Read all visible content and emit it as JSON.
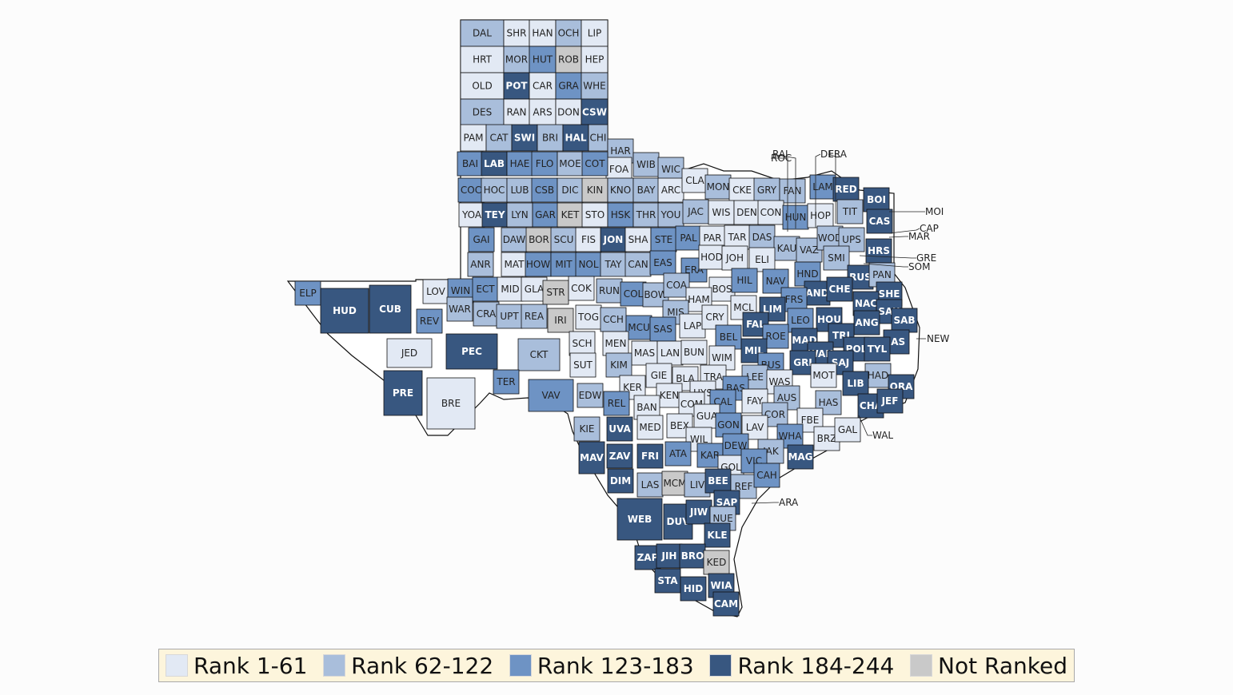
{
  "colors": {
    "rank1": "#e2e9f4",
    "rank2": "#a9bedb",
    "rank3": "#6e93c4",
    "rank4": "#385780",
    "unranked": "#c9c9c9"
  },
  "legend": {
    "items": [
      {
        "label": "Rank 1-61",
        "cls": "rank1"
      },
      {
        "label": "Rank 62-122",
        "cls": "rank2"
      },
      {
        "label": "Rank 123-183",
        "cls": "rank3"
      },
      {
        "label": "Rank 184-244",
        "cls": "rank4"
      },
      {
        "label": "Not Ranked",
        "cls": "unranked"
      }
    ]
  },
  "panhandle_grid": {
    "rows": [
      [
        "DAL",
        "SHR",
        "HAN",
        "OCH",
        "LIP"
      ],
      [
        "HRT",
        "MOR",
        "HUT",
        "ROB",
        "HEP"
      ],
      [
        "OLD",
        "POT",
        "CAR",
        "GRA",
        "WHE"
      ],
      [
        "DES",
        "RAN",
        "ARS",
        "DON",
        "CSW"
      ],
      [
        "PAM",
        "CAT",
        "SWI",
        "BRI",
        "HAL",
        "CHI"
      ]
    ],
    "ranks": [
      [
        2,
        1,
        1,
        2,
        1
      ],
      [
        1,
        2,
        3,
        "u",
        1
      ],
      [
        1,
        4,
        1,
        3,
        2
      ],
      [
        2,
        1,
        1,
        1,
        4
      ],
      [
        1,
        2,
        4,
        2,
        4,
        2
      ]
    ]
  },
  "counties": [
    {
      "c": "HAR",
      "r": 2
    },
    {
      "c": "FOA",
      "r": 1
    },
    {
      "c": "WIB",
      "r": 2
    },
    {
      "c": "WIC",
      "r": 2
    },
    {
      "c": "BAI",
      "r": 3
    },
    {
      "c": "LAB",
      "r": 4
    },
    {
      "c": "HAE",
      "r": 3
    },
    {
      "c": "FLO",
      "r": 3
    },
    {
      "c": "MOE",
      "r": 2
    },
    {
      "c": "COT",
      "r": 3
    },
    {
      "c": "COC",
      "r": 3
    },
    {
      "c": "HOC",
      "r": 2
    },
    {
      "c": "LUB",
      "r": 2
    },
    {
      "c": "CSB",
      "r": 3
    },
    {
      "c": "DIC",
      "r": 2
    },
    {
      "c": "KIN",
      "r": "u"
    },
    {
      "c": "KNO",
      "r": 2
    },
    {
      "c": "BAY",
      "r": 2
    },
    {
      "c": "ARC",
      "r": 1
    },
    {
      "c": "YOA",
      "r": 1
    },
    {
      "c": "TEY",
      "r": 4
    },
    {
      "c": "LYN",
      "r": 2
    },
    {
      "c": "GAR",
      "r": 3
    },
    {
      "c": "KET",
      "r": "u"
    },
    {
      "c": "STO",
      "r": 1
    },
    {
      "c": "HSK",
      "r": 3
    },
    {
      "c": "THR",
      "r": 2
    },
    {
      "c": "YOU",
      "r": 2
    },
    {
      "c": "GAI",
      "r": 3
    },
    {
      "c": "DAW",
      "r": 2
    },
    {
      "c": "BOR",
      "r": "u"
    },
    {
      "c": "SCU",
      "r": 2
    },
    {
      "c": "FIS",
      "r": 1
    },
    {
      "c": "JON",
      "r": 4
    },
    {
      "c": "SHA",
      "r": 1
    },
    {
      "c": "STE",
      "r": 3
    },
    {
      "c": "PAL",
      "r": 3
    },
    {
      "c": "ANR",
      "r": 2
    },
    {
      "c": "MAT",
      "r": 1
    },
    {
      "c": "HOW",
      "r": 3
    },
    {
      "c": "MIT",
      "r": 3
    },
    {
      "c": "NOL",
      "r": 3
    },
    {
      "c": "TAY",
      "r": 2
    },
    {
      "c": "CAN",
      "r": 2
    },
    {
      "c": "EAS",
      "r": 3
    },
    {
      "c": "ERA",
      "r": 3
    },
    {
      "c": "CLA",
      "r": 1
    },
    {
      "c": "MON",
      "r": 2
    },
    {
      "c": "CKE",
      "r": 1
    },
    {
      "c": "GRY",
      "r": 2
    },
    {
      "c": "FAN",
      "r": 2
    },
    {
      "c": "LAM",
      "r": 3
    },
    {
      "c": "RED",
      "r": 4
    },
    {
      "c": "BOI",
      "r": 4
    },
    {
      "c": "JAC",
      "r": 2
    },
    {
      "c": "WIS",
      "r": 1
    },
    {
      "c": "DEN",
      "r": 1
    },
    {
      "c": "CON",
      "r": 1
    },
    {
      "c": "HUN",
      "r": 3
    },
    {
      "c": "HOP",
      "r": 1
    },
    {
      "c": "TIT",
      "r": 2
    },
    {
      "c": "CAS",
      "r": 4
    },
    {
      "c": "PAR",
      "r": 1
    },
    {
      "c": "TAR",
      "r": 1
    },
    {
      "c": "DAS",
      "r": 2
    },
    {
      "c": "KAU",
      "r": 2
    },
    {
      "c": "VAZ",
      "r": 2
    },
    {
      "c": "WOD",
      "r": 2
    },
    {
      "c": "UPS",
      "r": 2
    },
    {
      "c": "HRS",
      "r": 4
    },
    {
      "c": "HOD",
      "r": 1
    },
    {
      "c": "JOH",
      "r": 1
    },
    {
      "c": "ELI",
      "r": 1
    },
    {
      "c": "SMI",
      "r": 2
    },
    {
      "c": "HND",
      "r": 3
    },
    {
      "c": "RUS",
      "r": 4
    },
    {
      "c": "PAN",
      "r": 2
    },
    {
      "c": "ELP",
      "r": 3
    },
    {
      "c": "HUD",
      "r": 4
    },
    {
      "c": "CUB",
      "r": 4
    },
    {
      "c": "LOV",
      "r": 1
    },
    {
      "c": "WIN",
      "r": 3
    },
    {
      "c": "ECT",
      "r": 3
    },
    {
      "c": "MID",
      "r": 1
    },
    {
      "c": "GLA",
      "r": 1
    },
    {
      "c": "STR",
      "r": "u"
    },
    {
      "c": "COK",
      "r": 1
    },
    {
      "c": "RUN",
      "r": 2
    },
    {
      "c": "WAR",
      "r": 2
    },
    {
      "c": "CRA",
      "r": 2
    },
    {
      "c": "UPT",
      "r": 2
    },
    {
      "c": "REA",
      "r": 2
    },
    {
      "c": "IRI",
      "r": "u"
    },
    {
      "c": "TOG",
      "r": 1
    },
    {
      "c": "REV",
      "r": 3
    },
    {
      "c": "COL",
      "r": 3
    },
    {
      "c": "BOW",
      "r": 2
    },
    {
      "c": "COA",
      "r": 2
    },
    {
      "c": "BOS",
      "r": 1
    },
    {
      "c": "HIL",
      "r": 3
    },
    {
      "c": "NAV",
      "r": 3
    },
    {
      "c": "AND",
      "r": 4
    },
    {
      "c": "CHE",
      "r": 4
    },
    {
      "c": "SHE",
      "r": 4
    },
    {
      "c": "HAM",
      "r": 1
    },
    {
      "c": "MCL",
      "r": 1
    },
    {
      "c": "FRS",
      "r": 3
    },
    {
      "c": "NAC",
      "r": 4
    },
    {
      "c": "SAU",
      "r": 4
    },
    {
      "c": "MIS",
      "r": 2
    },
    {
      "c": "LIM",
      "r": 4
    },
    {
      "c": "CCH",
      "r": 2
    },
    {
      "c": "LAP",
      "r": 1
    },
    {
      "c": "CRY",
      "r": 1
    },
    {
      "c": "FAL",
      "r": 4
    },
    {
      "c": "LEO",
      "r": 3
    },
    {
      "c": "HOU",
      "r": 4
    },
    {
      "c": "ANG",
      "r": 4
    },
    {
      "c": "SAB",
      "r": 4
    },
    {
      "c": "MCU",
      "r": 3
    },
    {
      "c": "SAS",
      "r": 3
    },
    {
      "c": "JED",
      "r": 1
    },
    {
      "c": "PEC",
      "r": 4
    },
    {
      "c": "CKT",
      "r": 2
    },
    {
      "c": "SCH",
      "r": 1
    },
    {
      "c": "MEN",
      "r": 1
    },
    {
      "c": "BEL",
      "r": 3
    },
    {
      "c": "ROE",
      "r": 3
    },
    {
      "c": "TRI",
      "r": 4
    },
    {
      "c": "JAS",
      "r": 4
    },
    {
      "c": "MAS",
      "r": 1
    },
    {
      "c": "LAN",
      "r": 1
    },
    {
      "c": "BUN",
      "r": 1
    },
    {
      "c": "WIM",
      "r": 1
    },
    {
      "c": "MIL",
      "r": 4
    },
    {
      "c": "MAD",
      "r": 4
    },
    {
      "c": "WAK",
      "r": 4
    },
    {
      "c": "POL",
      "r": 4
    },
    {
      "c": "TYL",
      "r": 4
    },
    {
      "c": "NEW",
      "r": 4
    },
    {
      "c": "SUT",
      "r": 1
    },
    {
      "c": "KIM",
      "r": 2
    },
    {
      "c": "BUS",
      "r": 3
    },
    {
      "c": "GRI",
      "r": 4
    },
    {
      "c": "SAJ",
      "r": 4
    },
    {
      "c": "GIE",
      "r": 1
    },
    {
      "c": "BLA",
      "r": 1
    },
    {
      "c": "TRA",
      "r": 1
    },
    {
      "c": "LEE",
      "r": 2
    },
    {
      "c": "MOT",
      "r": 1
    },
    {
      "c": "HAD",
      "r": 2
    },
    {
      "c": "TER",
      "r": 3
    },
    {
      "c": "VAV",
      "r": 3
    },
    {
      "c": "EDW",
      "r": 2
    },
    {
      "c": "KER",
      "r": 1
    },
    {
      "c": "KEN",
      "r": 1
    },
    {
      "c": "HYS",
      "r": 1
    },
    {
      "c": "BAS",
      "r": 3
    },
    {
      "c": "WAS",
      "r": 1
    },
    {
      "c": "AUS",
      "r": 2
    },
    {
      "c": "LIB",
      "r": 4
    },
    {
      "c": "ORA",
      "r": 4
    },
    {
      "c": "PRE",
      "r": 4
    },
    {
      "c": "BRE",
      "r": 1
    },
    {
      "c": "REL",
      "r": 3
    },
    {
      "c": "BAN",
      "r": 1
    },
    {
      "c": "COM",
      "r": 1
    },
    {
      "c": "CAL",
      "r": 3
    },
    {
      "c": "FAY",
      "r": 1
    },
    {
      "c": "HAS",
      "r": 2
    },
    {
      "c": "CHA",
      "r": 4
    },
    {
      "c": "JEF",
      "r": 4
    },
    {
      "c": "KIE",
      "r": 2
    },
    {
      "c": "UVA",
      "r": 4
    },
    {
      "c": "MED",
      "r": 1
    },
    {
      "c": "BEX",
      "r": 1
    },
    {
      "c": "GUA",
      "r": 1
    },
    {
      "c": "GON",
      "r": 3
    },
    {
      "c": "COR",
      "r": 2
    },
    {
      "c": "FBE",
      "r": 1
    },
    {
      "c": "BRZ",
      "r": 1
    },
    {
      "c": "GAL",
      "r": 1
    },
    {
      "c": "WIL",
      "r": 1
    },
    {
      "c": "LAV",
      "r": 1
    },
    {
      "c": "WHA",
      "r": 3
    },
    {
      "c": "MAV",
      "r": 4
    },
    {
      "c": "ZAV",
      "r": 4
    },
    {
      "c": "FRI",
      "r": 4
    },
    {
      "c": "ATA",
      "r": 3
    },
    {
      "c": "KAR",
      "r": 3
    },
    {
      "c": "DEW",
      "r": 3
    },
    {
      "c": "JAK",
      "r": 2
    },
    {
      "c": "MAG",
      "r": 4
    },
    {
      "c": "GOL",
      "r": 1
    },
    {
      "c": "VIC",
      "r": 3
    },
    {
      "c": "DIM",
      "r": 4
    },
    {
      "c": "LAS",
      "r": 2
    },
    {
      "c": "MCM",
      "r": "u"
    },
    {
      "c": "LIV",
      "r": 2
    },
    {
      "c": "BEE",
      "r": 4
    },
    {
      "c": "REF",
      "r": 2
    },
    {
      "c": "CAH",
      "r": 3
    },
    {
      "c": "SAP",
      "r": 4
    },
    {
      "c": "WEB",
      "r": 4
    },
    {
      "c": "DUV",
      "r": 4
    },
    {
      "c": "JIW",
      "r": 4
    },
    {
      "c": "NUE",
      "r": 2
    },
    {
      "c": "KLE",
      "r": 4
    },
    {
      "c": "ZAP",
      "r": 4
    },
    {
      "c": "JIH",
      "r": 4
    },
    {
      "c": "BRO",
      "r": 4
    },
    {
      "c": "KED",
      "r": "u"
    },
    {
      "c": "STA",
      "r": 4
    },
    {
      "c": "HID",
      "r": 4
    },
    {
      "c": "WIA",
      "r": 4
    },
    {
      "c": "CAM",
      "r": 4
    }
  ],
  "callouts": [
    "RAI",
    "ROC",
    "DEL",
    "FRA",
    "MOI",
    "CAP",
    "MAR",
    "GRE",
    "SOM",
    "NEW",
    "WAL",
    "ARA"
  ]
}
